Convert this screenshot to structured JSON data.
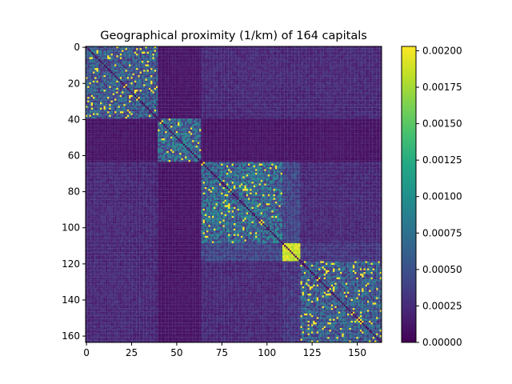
{
  "chart_data": {
    "type": "heatmap",
    "title": "Geographical proximity (1/km) of 164 capitals",
    "xlabel": "",
    "ylabel": "",
    "n": 164,
    "xlim": [
      -0.5,
      163.5
    ],
    "ylim": [
      163.5,
      -0.5
    ],
    "x_ticks": [
      0,
      25,
      50,
      75,
      100,
      125,
      150
    ],
    "y_ticks": [
      0,
      20,
      40,
      60,
      80,
      100,
      120,
      140,
      160
    ],
    "colorbar": {
      "vmin": 0.0,
      "vmax": 0.00203,
      "ticks": [
        0.0,
        0.00025,
        0.0005,
        0.00075,
        0.001,
        0.00125,
        0.0015,
        0.00175,
        0.002
      ],
      "tick_labels": [
        "0.00000",
        "0.00025",
        "0.00050",
        "0.00075",
        "0.00100",
        "0.00125",
        "0.00150",
        "0.00175",
        "0.00200"
      ],
      "colormap": "viridis"
    },
    "blocks": [
      {
        "start": 0,
        "end": 40,
        "typical_value": 0.0006
      },
      {
        "start": 40,
        "end": 64,
        "typical_value": 0.0007
      },
      {
        "start": 64,
        "end": 109,
        "typical_value": 0.0007
      },
      {
        "start": 109,
        "end": 119,
        "typical_value": 0.002
      },
      {
        "start": 119,
        "end": 164,
        "typical_value": 0.0006
      }
    ],
    "off_block_values": [
      {
        "rows": [
          0,
          40
        ],
        "cols": [
          40,
          64
        ],
        "value": 0.0001
      },
      {
        "rows": [
          0,
          40
        ],
        "cols": [
          64,
          164
        ],
        "value": 0.00022
      },
      {
        "rows": [
          40,
          64
        ],
        "cols": [
          64,
          164
        ],
        "value": 0.0001
      },
      {
        "rows": [
          64,
          109
        ],
        "cols": [
          109,
          119
        ],
        "value": 0.0004
      },
      {
        "rows": [
          64,
          109
        ],
        "cols": [
          119,
          164
        ],
        "value": 0.00022
      },
      {
        "rows": [
          109,
          119
        ],
        "cols": [
          119,
          164
        ],
        "value": 0.0003
      }
    ]
  }
}
